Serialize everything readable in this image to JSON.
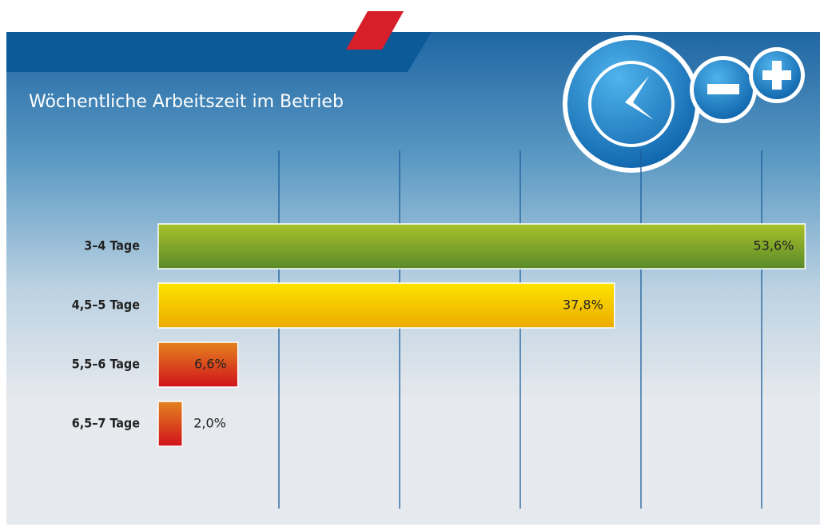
{
  "chart_data": {
    "type": "hbar",
    "title": "Wöchentliche Arbeitszeit im Betrieb",
    "categories": [
      "3–4 Tage",
      "4,5–5 Tage",
      "5,5–6 Tage",
      "6,5–7 Tage"
    ],
    "values": [
      53.6,
      37.8,
      6.6,
      2.0
    ],
    "value_labels": [
      "53,6%",
      "37,8%",
      "6,6%",
      "2,0%"
    ],
    "colors": [
      "green",
      "yellow",
      "red",
      "red"
    ],
    "xlim": [
      0,
      54
    ],
    "xticks": [
      10,
      20,
      30,
      40,
      50
    ],
    "grid": true
  }
}
